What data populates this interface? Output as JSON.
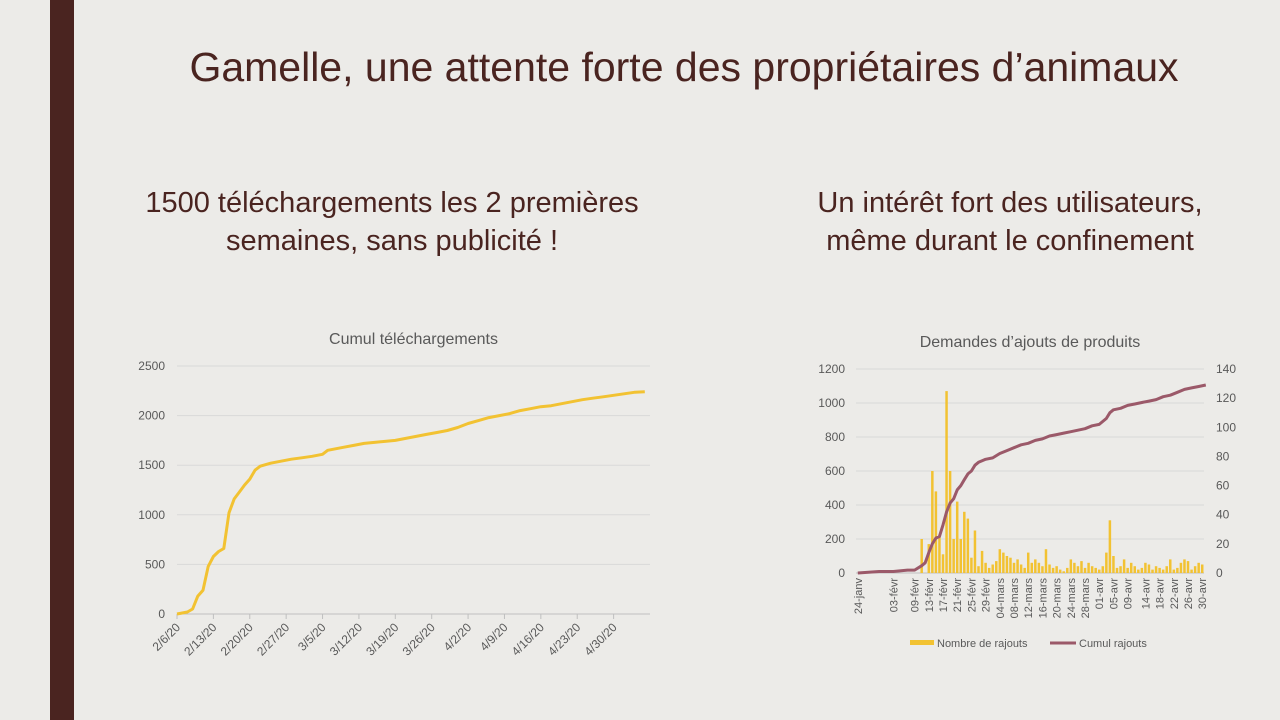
{
  "slide": {
    "title": "Gamelle, une attente forte des propriétaires d’animaux",
    "left_heading": "1500 téléchargements les 2 premières\nsemaines, sans publicité !",
    "right_heading": "Un intérêt fort des utilisateurs,\nmême durant le confinement"
  },
  "chart_data": [
    {
      "type": "line",
      "title": "Cumul téléchargements",
      "xlabel": "",
      "ylabel": "",
      "ylim": [
        0,
        2500
      ],
      "yticks": [
        0,
        500,
        1000,
        1500,
        2000,
        2500
      ],
      "xlim": [
        0,
        91
      ],
      "x_tick_labels": [
        "2/6/20",
        "2/13/20",
        "2/20/20",
        "2/27/20",
        "3/5/20",
        "3/12/20",
        "3/19/20",
        "3/26/20",
        "4/2/20",
        "4/9/20",
        "4/16/20",
        "4/23/20",
        "4/30/20"
      ],
      "x_tick_positions": [
        0,
        7,
        14,
        21,
        28,
        35,
        42,
        49,
        56,
        63,
        70,
        77,
        84
      ],
      "grid": true,
      "colors": {
        "line": "#f2c232",
        "grid": "#d9d9d9",
        "axis_text": "#595959"
      },
      "series": [
        {
          "x": [
            0,
            2,
            3,
            4,
            5,
            6,
            7,
            8,
            9,
            10,
            11,
            12,
            13,
            14,
            15,
            16,
            18,
            20,
            22,
            24,
            26,
            28,
            29,
            30,
            32,
            34,
            36,
            38,
            40,
            42,
            44,
            46,
            48,
            50,
            52,
            54,
            56,
            58,
            60,
            62,
            64,
            66,
            68,
            70,
            72,
            74,
            76,
            78,
            80,
            82,
            84,
            86,
            88,
            90
          ],
          "y": [
            0,
            20,
            50,
            180,
            240,
            480,
            580,
            630,
            660,
            1020,
            1160,
            1230,
            1300,
            1360,
            1450,
            1490,
            1520,
            1540,
            1560,
            1575,
            1590,
            1610,
            1650,
            1660,
            1680,
            1700,
            1720,
            1730,
            1740,
            1750,
            1770,
            1790,
            1810,
            1830,
            1850,
            1880,
            1920,
            1950,
            1980,
            2000,
            2020,
            2050,
            2070,
            2090,
            2100,
            2120,
            2140,
            2160,
            2175,
            2190,
            2205,
            2220,
            2235,
            2240
          ]
        }
      ]
    },
    {
      "type": "bar+line",
      "title": "Demandes d’ajouts de produits",
      "xlabel": "",
      "ylabel": "",
      "ylim": [
        0,
        1200
      ],
      "yticks": [
        0,
        200,
        400,
        600,
        800,
        1000,
        1200
      ],
      "y2lim": [
        0,
        140
      ],
      "y2ticks": [
        0,
        20,
        40,
        60,
        80,
        100,
        120,
        140
      ],
      "x_start": "24-janv",
      "x_tick_labels": [
        "24-janv",
        "03-févr",
        "09-févr",
        "13-févr",
        "17-févr",
        "21-févr",
        "25-févr",
        "29-févr",
        "04-mars",
        "08-mars",
        "12-mars",
        "16-mars",
        "20-mars",
        "24-mars",
        "28-mars",
        "01-avr",
        "05-avr",
        "09-avr",
        "14-avr",
        "18-avr",
        "22-avr",
        "26-avr",
        "30-avr"
      ],
      "x_tick_positions": [
        0,
        10,
        16,
        20,
        24,
        28,
        32,
        36,
        40,
        44,
        48,
        52,
        56,
        60,
        64,
        68,
        72,
        76,
        81,
        85,
        89,
        93,
        97
      ],
      "legend_position": "bottom",
      "grid": true,
      "colors": {
        "bars": "#f2c232",
        "line": "#9b5969",
        "grid": "#d9d9d9",
        "axis_text": "#595959"
      },
      "series": [
        {
          "name": "Nombre de rajouts",
          "axis": "left",
          "values": [
            0,
            0,
            0,
            0,
            0,
            0,
            0,
            0,
            0,
            0,
            0,
            0,
            0,
            0,
            0,
            0,
            0,
            0,
            200,
            0,
            170,
            600,
            480,
            210,
            110,
            1070,
            600,
            200,
            420,
            200,
            360,
            320,
            90,
            250,
            40,
            130,
            60,
            30,
            50,
            70,
            140,
            120,
            100,
            90,
            60,
            80,
            50,
            30,
            120,
            60,
            80,
            60,
            40,
            140,
            50,
            30,
            40,
            20,
            10,
            30,
            80,
            60,
            40,
            70,
            30,
            60,
            40,
            30,
            20,
            40,
            120,
            310,
            100,
            30,
            40,
            80,
            30,
            60,
            40,
            20,
            30,
            60,
            50,
            20,
            40,
            30,
            20,
            40,
            80,
            20,
            30,
            60,
            80,
            70,
            20,
            40,
            60,
            50
          ]
        },
        {
          "name": "Cumul rajouts",
          "axis": "right",
          "points": [
            [
              0,
              0
            ],
            [
              6,
              1
            ],
            [
              10,
              1
            ],
            [
              14,
              2
            ],
            [
              16,
              2
            ],
            [
              18,
              5
            ],
            [
              19,
              7
            ],
            [
              20,
              14
            ],
            [
              21,
              20
            ],
            [
              22,
              24
            ],
            [
              23,
              25
            ],
            [
              24,
              33
            ],
            [
              25,
              42
            ],
            [
              26,
              48
            ],
            [
              27,
              51
            ],
            [
              28,
              57
            ],
            [
              29,
              60
            ],
            [
              30,
              64
            ],
            [
              31,
              68
            ],
            [
              32,
              70
            ],
            [
              33,
              74
            ],
            [
              34,
              76
            ],
            [
              35,
              77
            ],
            [
              36,
              78
            ],
            [
              38,
              79
            ],
            [
              40,
              82
            ],
            [
              42,
              84
            ],
            [
              44,
              86
            ],
            [
              46,
              88
            ],
            [
              48,
              89
            ],
            [
              50,
              91
            ],
            [
              52,
              92
            ],
            [
              54,
              94
            ],
            [
              56,
              95
            ],
            [
              58,
              96
            ],
            [
              60,
              97
            ],
            [
              62,
              98
            ],
            [
              64,
              99
            ],
            [
              66,
              101
            ],
            [
              68,
              102
            ],
            [
              70,
              106
            ],
            [
              71,
              110
            ],
            [
              72,
              112
            ],
            [
              74,
              113
            ],
            [
              76,
              115
            ],
            [
              78,
              116
            ],
            [
              80,
              117
            ],
            [
              82,
              118
            ],
            [
              84,
              119
            ],
            [
              86,
              121
            ],
            [
              88,
              122
            ],
            [
              90,
              124
            ],
            [
              92,
              126
            ],
            [
              94,
              127
            ],
            [
              96,
              128
            ],
            [
              98,
              129
            ]
          ]
        }
      ]
    }
  ]
}
